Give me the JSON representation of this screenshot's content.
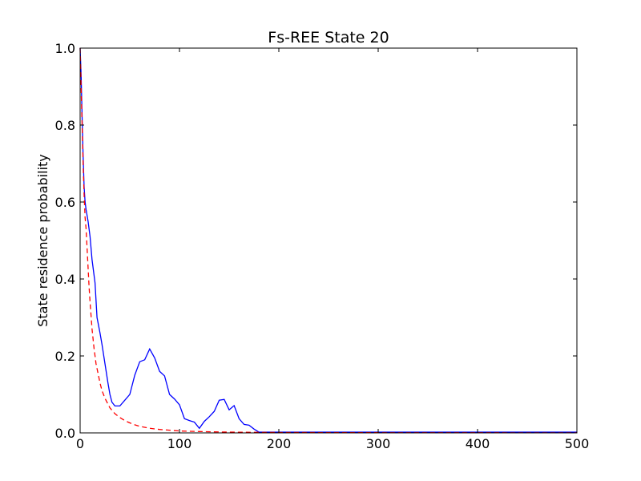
{
  "chart_data": {
    "type": "line",
    "title": "Fs-REE State 20",
    "xlabel": "",
    "ylabel": "State residence probability",
    "xlim": [
      0,
      500
    ],
    "ylim": [
      0.0,
      1.0
    ],
    "xticks": [
      "0",
      "100",
      "200",
      "300",
      "400",
      "500"
    ],
    "yticks": [
      "0.0",
      "0.2",
      "0.4",
      "0.6",
      "0.8",
      "1.0"
    ],
    "grid": false,
    "legend": "none",
    "series": [
      {
        "style": "solid",
        "color": "#0000ff",
        "x": [
          0,
          1,
          2,
          3,
          4,
          5,
          6,
          8,
          10,
          12,
          15,
          17,
          20,
          22,
          25,
          28,
          30,
          32,
          35,
          40,
          45,
          50,
          55,
          60,
          65,
          70,
          75,
          80,
          85,
          90,
          95,
          100,
          105,
          110,
          115,
          120,
          125,
          130,
          135,
          140,
          145,
          150,
          155,
          160,
          165,
          170,
          175,
          180,
          190,
          200,
          250,
          300,
          350,
          400,
          450,
          500
        ],
        "y": [
          1.0,
          0.93,
          0.82,
          0.72,
          0.64,
          0.6,
          0.58,
          0.55,
          0.51,
          0.45,
          0.39,
          0.3,
          0.26,
          0.23,
          0.18,
          0.13,
          0.1,
          0.08,
          0.07,
          0.07,
          0.085,
          0.1,
          0.15,
          0.185,
          0.19,
          0.218,
          0.195,
          0.16,
          0.148,
          0.1,
          0.088,
          0.073,
          0.037,
          0.032,
          0.028,
          0.012,
          0.03,
          0.042,
          0.056,
          0.085,
          0.087,
          0.06,
          0.071,
          0.037,
          0.022,
          0.02,
          0.01,
          0.002,
          0.002,
          0.002,
          0.002,
          0.002,
          0.002,
          0.002,
          0.002,
          0.002
        ]
      },
      {
        "style": "dashed",
        "color": "#ff0000",
        "x": [
          0,
          1,
          2,
          3,
          4,
          5,
          6,
          7,
          8,
          9,
          10,
          12,
          14,
          16,
          18,
          20,
          22,
          25,
          28,
          30,
          35,
          40,
          45,
          50,
          55,
          60,
          70,
          80,
          90,
          100,
          120,
          140,
          160,
          180,
          200,
          250,
          300,
          350,
          400,
          450,
          500
        ],
        "y": [
          1.0,
          0.9,
          0.8,
          0.7,
          0.62,
          0.56,
          0.53,
          0.48,
          0.43,
          0.38,
          0.34,
          0.27,
          0.22,
          0.18,
          0.155,
          0.13,
          0.11,
          0.09,
          0.075,
          0.065,
          0.05,
          0.04,
          0.032,
          0.026,
          0.021,
          0.017,
          0.012,
          0.009,
          0.007,
          0.005,
          0.0035,
          0.0025,
          0.0018,
          0.0014,
          0.0011,
          0.0008,
          0.0006,
          0.0005,
          0.0004,
          0.0003,
          0.0003
        ]
      }
    ]
  }
}
